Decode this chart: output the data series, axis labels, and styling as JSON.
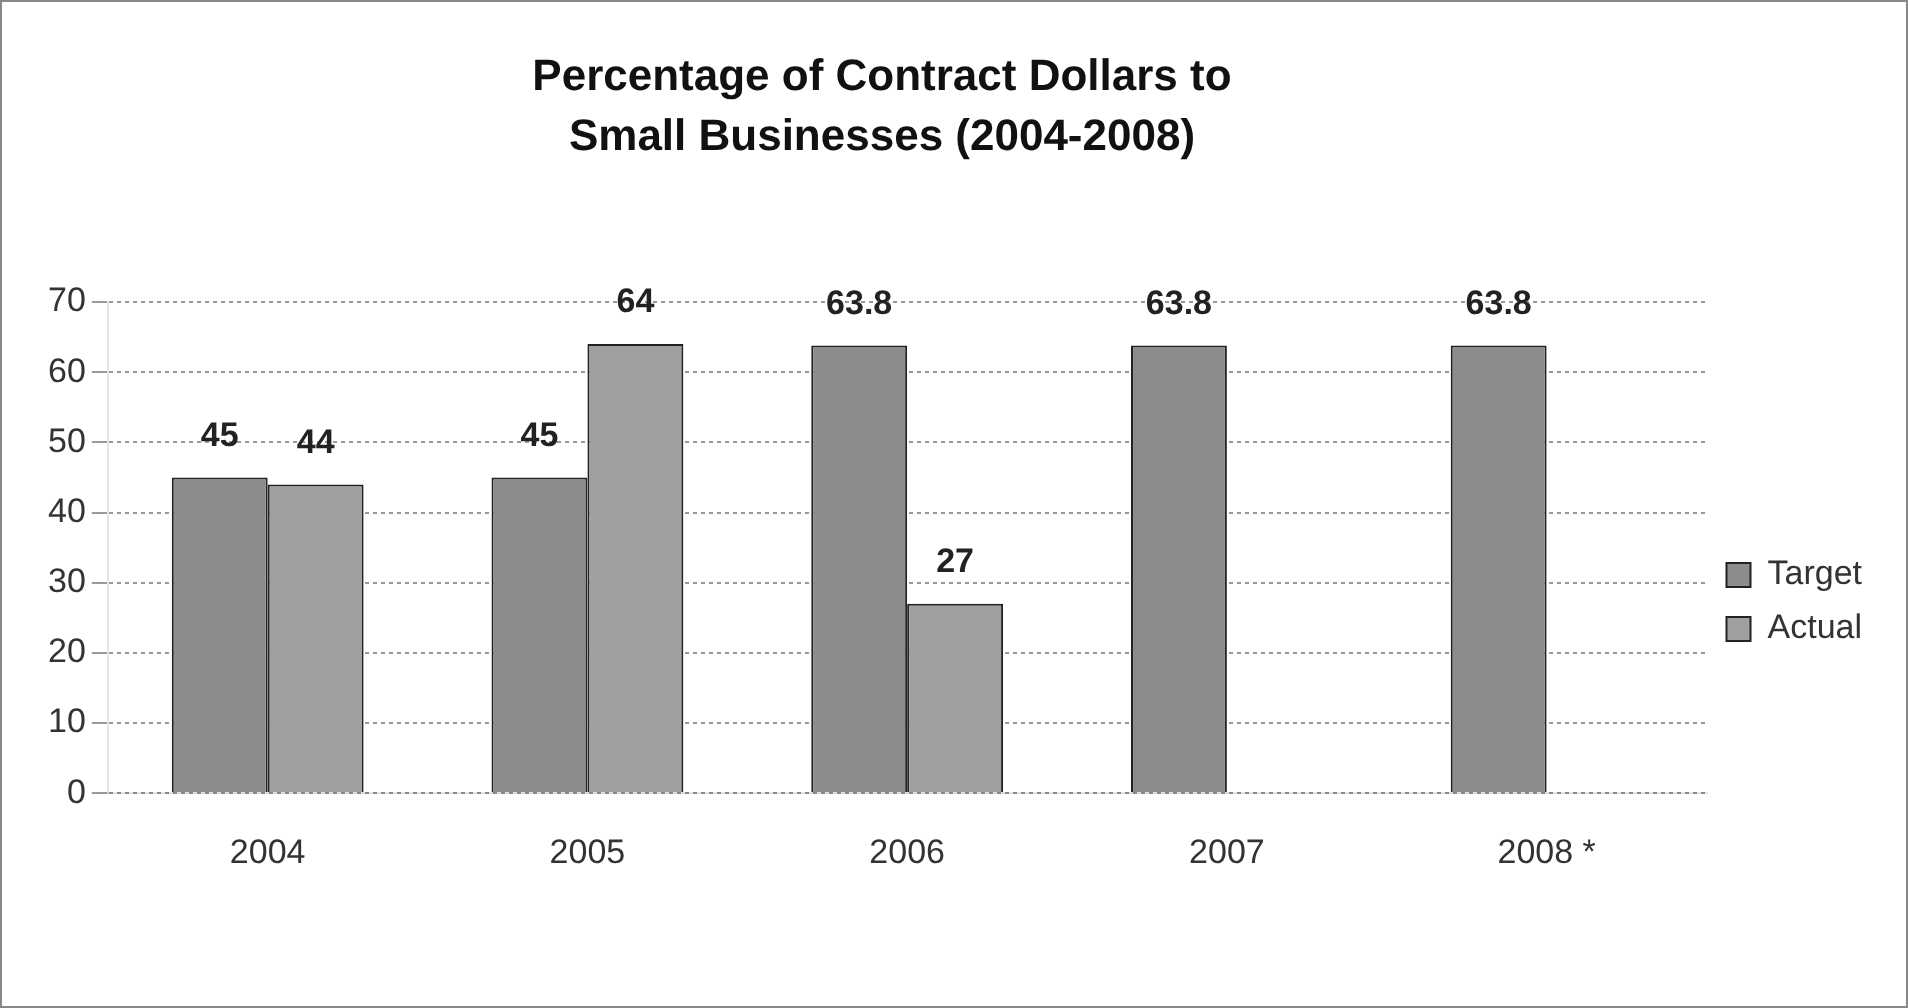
{
  "chart_data": {
    "type": "bar",
    "title": "Percentage of Contract Dollars to Small Businesses (2004-2008)",
    "categories": [
      "2004",
      "2005",
      "2006",
      "2007",
      "2008 *"
    ],
    "series": [
      {
        "name": "Target",
        "color": "#8c8c8c",
        "values": [
          45,
          45,
          63.8,
          63.8,
          63.8
        ]
      },
      {
        "name": "Actual",
        "color": "#a0a0a0",
        "values": [
          44,
          64,
          27,
          null,
          null
        ]
      }
    ],
    "ylim": [
      0,
      70
    ],
    "yticks": [
      0,
      10,
      20,
      30,
      40,
      50,
      60,
      70
    ],
    "grid": "y",
    "legend": "right",
    "data_labels": true
  }
}
